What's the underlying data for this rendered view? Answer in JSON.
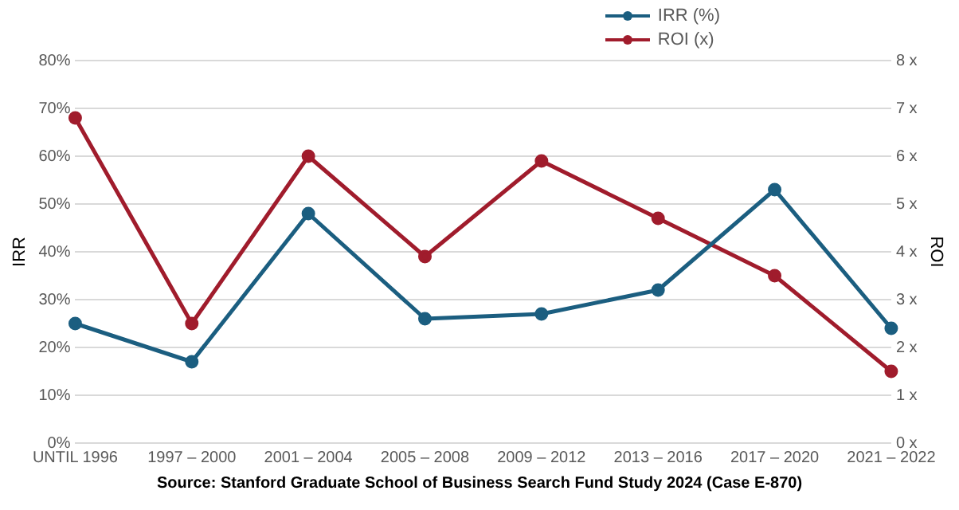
{
  "chart_data": {
    "type": "line",
    "ylabel": "IRR",
    "y2label": "ROI",
    "categories": [
      "UNTIL 1996",
      "1997 – 2000",
      "2001 – 2004",
      "2005 – 2008",
      "2009 – 2012",
      "2013 – 2016",
      "2017 – 2020",
      "2021 – 2022"
    ],
    "series": [
      {
        "name": "IRR (%)",
        "color": "#1b5e80",
        "values": [
          25,
          17,
          48,
          26,
          27,
          32,
          53,
          24
        ]
      },
      {
        "name": "ROI (x)",
        "color": "#a01c2c",
        "axis": "y2",
        "values": [
          6.8,
          2.5,
          6.0,
          3.9,
          5.9,
          4.7,
          3.5,
          1.5
        ]
      }
    ],
    "ylim": [
      0,
      80
    ],
    "yticks": [
      {
        "value": 0,
        "label": "0%"
      },
      {
        "value": 10,
        "label": "10%"
      },
      {
        "value": 20,
        "label": "20%"
      },
      {
        "value": 30,
        "label": "30%"
      },
      {
        "value": 40,
        "label": "40%"
      },
      {
        "value": 50,
        "label": "50%"
      },
      {
        "value": 60,
        "label": "60%"
      },
      {
        "value": 70,
        "label": "70%"
      },
      {
        "value": 80,
        "label": "80%"
      }
    ],
    "y2lim": [
      0,
      8
    ],
    "y2ticks": [
      {
        "value": 0,
        "label": "0 x"
      },
      {
        "value": 1,
        "label": "1 x"
      },
      {
        "value": 2,
        "label": "2 x"
      },
      {
        "value": 3,
        "label": "3 x"
      },
      {
        "value": 4,
        "label": "4 x"
      },
      {
        "value": 5,
        "label": "5 x"
      },
      {
        "value": 6,
        "label": "6 x"
      },
      {
        "value": 7,
        "label": "7 x"
      },
      {
        "value": 8,
        "label": "8 x"
      }
    ],
    "grid": "y",
    "legend": "top right",
    "marker": "circle",
    "line_style": "solid",
    "annotations": [
      "Source: Stanford Graduate School of Business Search Fund Study 2024 (Case E-870)"
    ]
  }
}
